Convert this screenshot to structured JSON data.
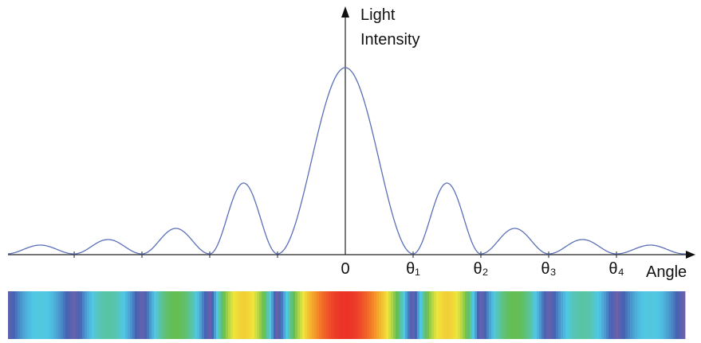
{
  "axis": {
    "y_label": [
      "Light",
      "Intensity"
    ],
    "x_label": "Angle",
    "x_ticks": [
      "0",
      "θ₁",
      "θ₂",
      "θ₃",
      "θ₄"
    ]
  }
}
